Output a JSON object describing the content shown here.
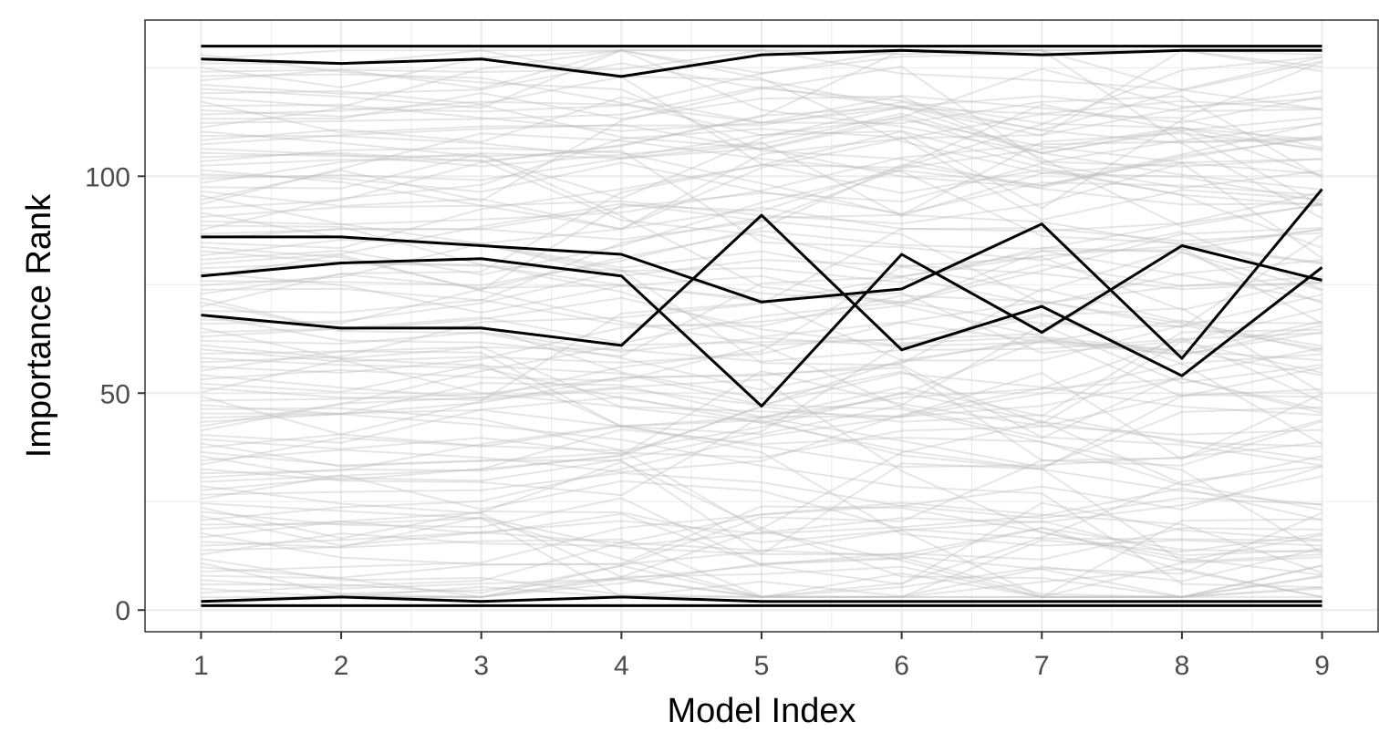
{
  "chart_data": {
    "type": "line",
    "title": "",
    "xlabel": "Model Index",
    "ylabel": "Importance Rank",
    "x": [
      1,
      2,
      3,
      4,
      5,
      6,
      7,
      8,
      9
    ],
    "x_ticks": [
      "1",
      "2",
      "3",
      "4",
      "5",
      "6",
      "7",
      "8",
      "9"
    ],
    "y_ticks": [
      "0",
      "50",
      "100"
    ],
    "xlim": [
      0.6,
      9.4
    ],
    "ylim": [
      -5,
      136
    ],
    "grid": true,
    "legend": "none",
    "colors": {
      "highlight": "#000000",
      "background_lines": "#bdbdbd",
      "grid": "#ebebeb",
      "panel_border": "#333333"
    },
    "n_background_series": 130,
    "highlighted_series": [
      {
        "values": [
          130,
          130,
          130,
          130,
          130,
          130,
          130,
          130,
          130
        ]
      },
      {
        "values": [
          127,
          126,
          127,
          123,
          128,
          129,
          128,
          129,
          129
        ]
      },
      {
        "values": [
          86,
          86,
          84,
          82,
          71,
          74,
          89,
          58,
          97
        ]
      },
      {
        "values": [
          77,
          80,
          81,
          77,
          47,
          82,
          64,
          84,
          76
        ]
      },
      {
        "values": [
          68,
          65,
          65,
          61,
          91,
          60,
          70,
          54,
          79
        ]
      },
      {
        "values": [
          2,
          3,
          2,
          3,
          2,
          2,
          2,
          2,
          2
        ]
      },
      {
        "values": [
          1,
          1,
          1,
          1,
          1,
          1,
          1,
          1,
          1
        ]
      }
    ]
  }
}
